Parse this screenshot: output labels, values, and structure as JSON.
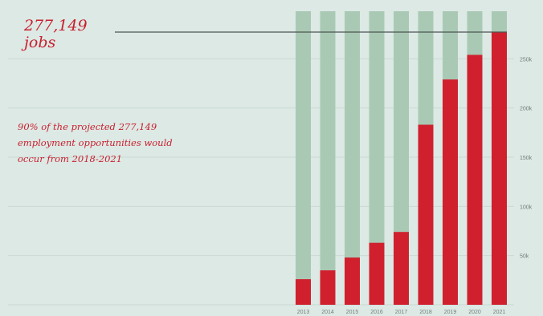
{
  "colors": {
    "background": "#dde9e5",
    "bar_total": "#a9c9b4",
    "bar_jobs": "#d0202e",
    "annotation": "#c8202e",
    "gridline": "#c9d9d4",
    "total_line": "#4d5452"
  },
  "annotation": {
    "total_value": "277,149",
    "total_unit": "jobs",
    "note_lines": [
      "90% of the projected 277,149",
      "employment opportunities would",
      "occur from 2018-2021"
    ]
  },
  "chart_data": {
    "type": "bar",
    "title": "",
    "xlabel": "",
    "ylabel": "",
    "categories": [
      "2013",
      "2014",
      "2015",
      "2016",
      "2017",
      "2018",
      "2019",
      "2020",
      "2021"
    ],
    "values": [
      26000,
      35000,
      48000,
      63000,
      74000,
      183000,
      229000,
      254000,
      277149
    ],
    "total_reference": 277149,
    "ylim": [
      0,
      277149
    ],
    "yticks": [
      50000,
      100000,
      150000,
      200000,
      250000
    ],
    "ytick_labels": [
      "50k",
      "100k",
      "150k",
      "200k",
      "250k"
    ],
    "grid": true,
    "legend": "none"
  }
}
